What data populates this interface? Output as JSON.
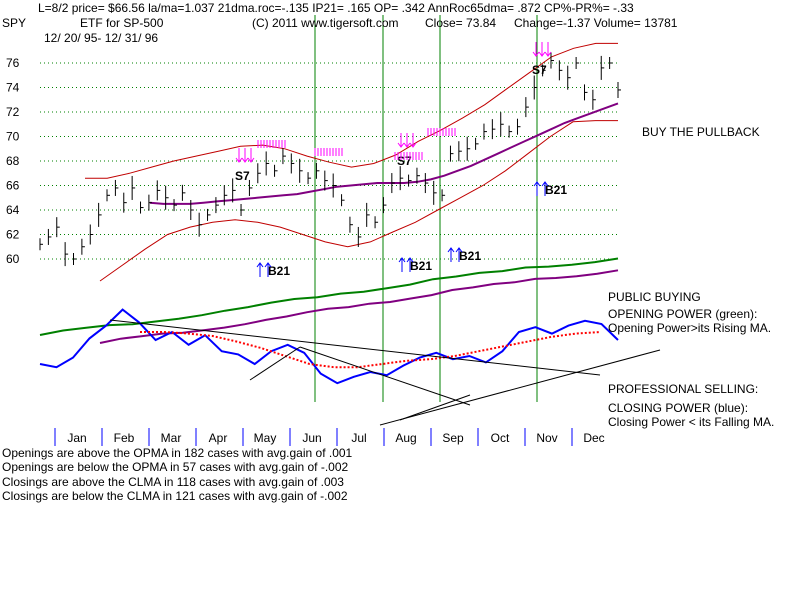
{
  "header": {
    "line1": "L=8/2  price= $66.56  la/ma=1.037 21dma.roc=-.135 IP21= .165 OP= .342 AnnRoc65dma= .872 CP%-PR%= -.33",
    "symbol": "SPY",
    "name": "ETF for SP-500",
    "copyright": "(C) 2011 www.tigersoft.com",
    "close": "Close=  73.84",
    "change": "Change=-1.37 Volume= 13781",
    "date_range": "12/ 20/ 95- 12/ 31/ 96"
  },
  "notes": {
    "buy_pullback": "BUY THE PULLBACK",
    "public_buying": "PUBLIC BUYING",
    "opening_power": "OPENING POWER (green):",
    "opening_power_desc": "Opening Power>its Rising MA.",
    "professional_selling": "PROFESSIONAL SELLING:",
    "closing_power": "CLOSING POWER (blue):",
    "closing_power_desc": "Closing Power < its Falling MA."
  },
  "stats": [
    "Openings are above the OPMA in  182 cases with avg.gain of  .001",
    "Openings are below the OPMA in  57 cases with avg.gain of -.002",
    "Closings are above the CLMA in  118 cases with avg.gain of  .003",
    "Closings are below the CLMA in  121 cases with avg.gain of -.002"
  ],
  "colors": {
    "price": "#000000",
    "bands": "#c00000",
    "ma": "#800080",
    "opening_power": "#008000",
    "closing_power": "#0000ff",
    "closing_ma": "#ff0000",
    "signal_sell": "#ff00ff",
    "signal_buy": "#0000ff",
    "vertical_lines": "#008000",
    "grid": "#008000"
  },
  "chart_data": {
    "type": "line",
    "yticks": [
      60,
      62,
      64,
      66,
      68,
      70,
      72,
      74,
      76
    ],
    "ylim": [
      59,
      78
    ],
    "months": [
      "Jan",
      "Feb",
      "Mar",
      "Apr",
      "May",
      "Jun",
      "Jul",
      "Aug",
      "Sep",
      "Oct",
      "Nov",
      "Dec"
    ],
    "price_close": [
      61.2,
      61.8,
      62.6,
      60.4,
      60.0,
      61.0,
      62.0,
      63.6,
      65.2,
      65.8,
      64.6,
      65.8,
      64.2,
      64.6,
      65.6,
      65.0,
      64.4,
      65.4,
      64.0,
      62.8,
      63.6,
      64.4,
      65.2,
      65.6,
      64.0,
      65.8,
      67.0,
      67.8,
      67.2,
      68.4,
      67.8,
      67.2,
      66.6,
      67.2,
      66.4,
      66.0,
      64.8,
      62.8,
      61.8,
      63.6,
      63.0,
      64.4,
      66.2,
      66.6,
      66.4,
      66.8,
      66.2,
      65.4,
      65.2,
      68.6,
      68.8,
      69.0,
      69.4,
      70.4,
      70.6,
      71.0,
      70.4,
      70.8,
      72.4,
      74.0,
      75.4,
      76.2,
      75.4,
      74.8,
      76.0,
      73.6,
      73.0,
      75.6,
      76.0,
      73.8
    ],
    "ma_line": [
      64.6,
      64.5,
      64.5,
      64.5,
      64.6,
      64.7,
      64.8,
      64.9,
      65.0,
      65.1,
      65.2,
      65.3,
      65.5,
      65.7,
      65.9,
      66.0,
      66.1,
      66.2,
      66.2,
      66.2,
      66.3,
      66.5,
      66.8,
      67.2,
      67.6,
      68.1,
      68.6,
      69.1,
      69.6,
      70.1,
      70.6,
      71.1,
      71.5,
      71.9,
      72.3,
      72.7
    ],
    "upper_band": [
      66.6,
      66.6,
      67.0,
      67.5,
      68.0,
      68.4,
      68.8,
      69.2,
      69.3,
      69.0,
      68.4,
      67.9,
      67.5,
      67.8,
      68.5,
      69.6,
      70.5,
      71.5,
      72.6,
      73.9,
      75.2,
      76.5,
      77.2,
      77.6,
      77.6
    ],
    "lower_band": [
      58.2,
      59.5,
      60.8,
      62.0,
      62.6,
      63.0,
      63.2,
      63.0,
      62.6,
      62.0,
      61.4,
      61.0,
      61.4,
      62.2,
      63.0,
      64.0,
      65.0,
      66.0,
      67.2,
      68.6,
      70.0,
      71.2,
      71.3,
      71.3
    ],
    "opening_power": [
      0,
      0.5,
      0.8,
      1.1,
      1.2,
      1.5,
      1.8,
      2.2,
      2.7,
      3.1,
      3.6,
      4.0,
      4.2,
      4.6,
      4.8,
      5.2,
      5.6,
      6.2,
      6.5,
      6.9,
      7.1,
      7.5,
      7.6,
      7.8,
      8.1,
      8.5
    ],
    "closing_power": [
      2.0,
      1.6,
      2.8,
      5.2,
      6.8,
      8.8,
      7.2,
      5.0,
      6.0,
      4.4,
      5.6,
      3.6,
      3.2,
      2.0,
      3.6,
      4.4,
      3.4,
      0.8,
      -0.4,
      0.4,
      1.0,
      0.6,
      1.8,
      2.8,
      3.4,
      2.6,
      3.0,
      2.2,
      3.6,
      6.0,
      6.6,
      5.8,
      6.8,
      7.4,
      7.0,
      5.0
    ],
    "closing_ma": [
      6.0,
      6.0,
      5.8,
      5.5,
      4.8,
      4.0,
      3.0,
      2.0,
      1.6,
      1.6,
      2.0,
      2.4,
      2.6,
      3.0,
      3.6,
      4.2,
      4.8,
      5.4,
      5.8,
      6.0
    ],
    "signals": [
      {
        "label": "S7",
        "kind": "sell"
      },
      {
        "label": "S7",
        "kind": "sell"
      },
      {
        "label": "S7",
        "kind": "sell"
      },
      {
        "label": "B21",
        "kind": "buy"
      },
      {
        "label": "B21",
        "kind": "buy"
      },
      {
        "label": "B21",
        "kind": "buy"
      },
      {
        "label": "B21",
        "kind": "buy"
      }
    ]
  }
}
